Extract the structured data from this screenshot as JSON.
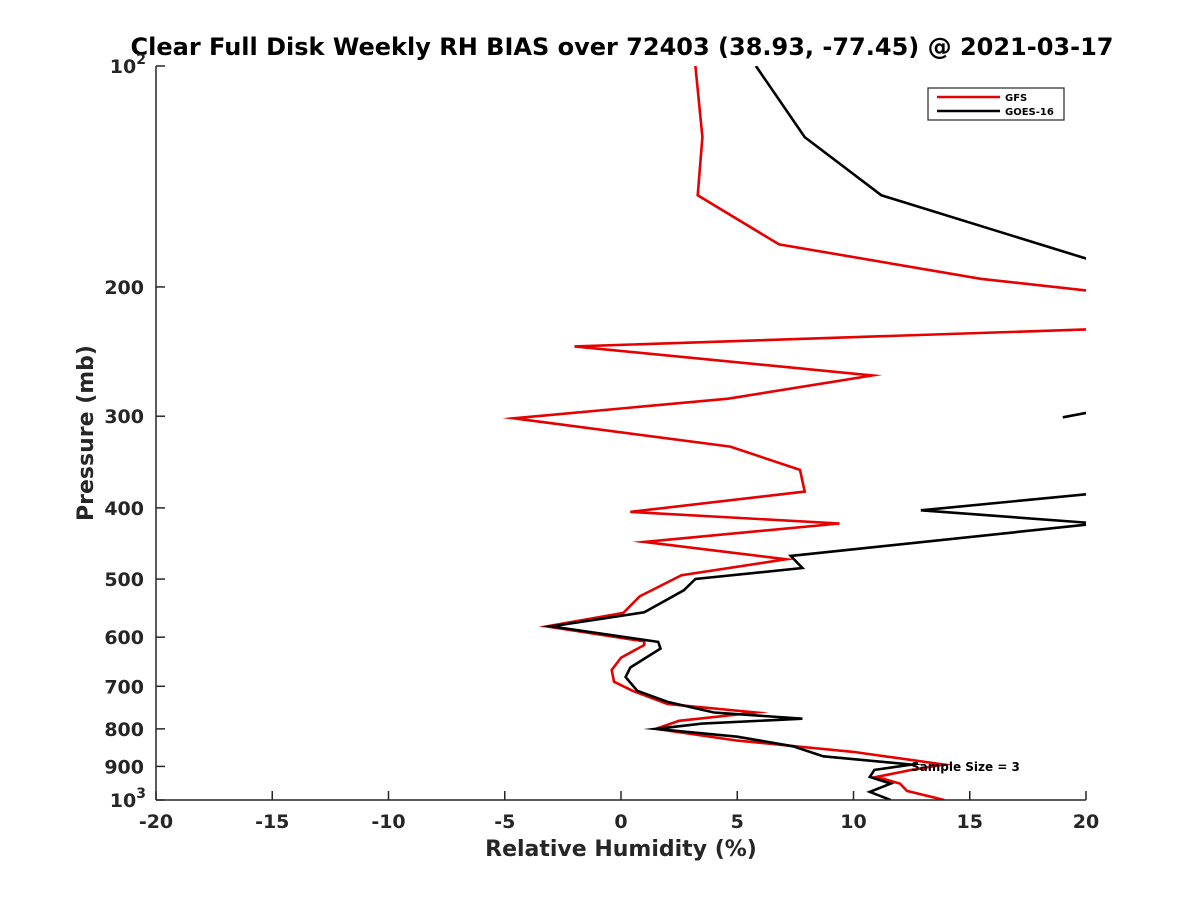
{
  "chart_data": {
    "type": "line",
    "title": "Clear Full Disk Weekly RH BIAS over 72403 (38.93, -77.45) @ 2021-03-17",
    "xlabel": "Relative Humidity (%)",
    "ylabel": "Pressure (mb)",
    "xlim": [
      -20,
      20
    ],
    "ylim": [
      100,
      1000
    ],
    "y_scale": "log",
    "y_reversed": true,
    "grid": false,
    "legend_position": "top-right",
    "x_ticks": [
      "-20",
      "-15",
      "-10",
      "-5",
      "0",
      "5",
      "10",
      "15",
      "20"
    ],
    "y_ticks": [
      {
        "value": 100,
        "base": "10",
        "exp": "2"
      },
      {
        "value": 200,
        "label": "200"
      },
      {
        "value": 300,
        "label": "300"
      },
      {
        "value": 400,
        "label": "400"
      },
      {
        "value": 500,
        "label": "500"
      },
      {
        "value": 600,
        "label": "600"
      },
      {
        "value": 700,
        "label": "700"
      },
      {
        "value": 800,
        "label": "800"
      },
      {
        "value": 900,
        "label": "900"
      },
      {
        "value": 1000,
        "base": "10",
        "exp": "3"
      }
    ],
    "series": [
      {
        "name": "GFS",
        "color": "#e60000",
        "points": [
          [
            3.2,
            100
          ],
          [
            3.5,
            125
          ],
          [
            3.3,
            150
          ],
          [
            6.8,
            175
          ],
          [
            15.5,
            195
          ],
          [
            20.5,
            203
          ],
          [
            21,
            228
          ],
          [
            -2.0,
            241
          ],
          [
            10.8,
            264
          ],
          [
            4.6,
            284
          ],
          [
            -4.6,
            302
          ],
          [
            4.7,
            330
          ],
          [
            7.7,
            355
          ],
          [
            7.9,
            380
          ],
          [
            0.4,
            405
          ],
          [
            9.4,
            420
          ],
          [
            1.0,
            445
          ],
          [
            7.1,
            470
          ],
          [
            2.6,
            494
          ],
          [
            0.8,
            528
          ],
          [
            0.1,
            556
          ],
          [
            -3.2,
            580
          ],
          [
            1.0,
            608
          ],
          [
            1.0,
            615
          ],
          [
            0.0,
            640
          ],
          [
            -0.4,
            665
          ],
          [
            -0.3,
            690
          ],
          [
            0.5,
            710
          ],
          [
            2.0,
            740
          ],
          [
            5.8,
            760
          ],
          [
            2.5,
            780
          ],
          [
            1.5,
            800
          ],
          [
            5.0,
            830
          ],
          [
            10.0,
            860
          ],
          [
            13.9,
            895
          ],
          [
            12.5,
            910
          ],
          [
            11.0,
            930
          ],
          [
            12.0,
            950
          ],
          [
            12.3,
            972
          ],
          [
            13.9,
            1000
          ]
        ]
      },
      {
        "name": "GOES-16",
        "color": "#000000",
        "segments": [
          [
            [
              5.8,
              100
            ],
            [
              7.9,
              125
            ],
            [
              11.2,
              150
            ],
            [
              20.5,
              185
            ]
          ],
          [
            [
              19.0,
              301
            ],
            [
              20.5,
              295
            ],
            [
              20.5,
              303
            ]
          ],
          [
            [
              20.5,
              382
            ],
            [
              12.9,
              403
            ],
            [
              20.5,
              420
            ],
            [
              7.3,
              465
            ],
            [
              7.8,
              483
            ],
            [
              3.2,
              500
            ],
            [
              2.7,
              518
            ],
            [
              1.0,
              555
            ],
            [
              -3.0,
              580
            ],
            [
              1.6,
              609
            ],
            [
              1.7,
              622
            ],
            [
              0.4,
              660
            ],
            [
              0.2,
              680
            ],
            [
              0.7,
              710
            ],
            [
              2.0,
              735
            ],
            [
              4.0,
              760
            ],
            [
              7.8,
              775
            ],
            [
              3.5,
              787
            ],
            [
              1.5,
              800
            ],
            [
              5.0,
              820
            ],
            [
              7.4,
              845
            ],
            [
              8.7,
              872
            ],
            [
              12.5,
              895
            ],
            [
              10.9,
              910
            ],
            [
              10.7,
              930
            ],
            [
              11.6,
              950
            ],
            [
              10.7,
              975
            ],
            [
              11.6,
              1000
            ]
          ]
        ]
      }
    ],
    "annotation": "Sample Size = 3"
  }
}
